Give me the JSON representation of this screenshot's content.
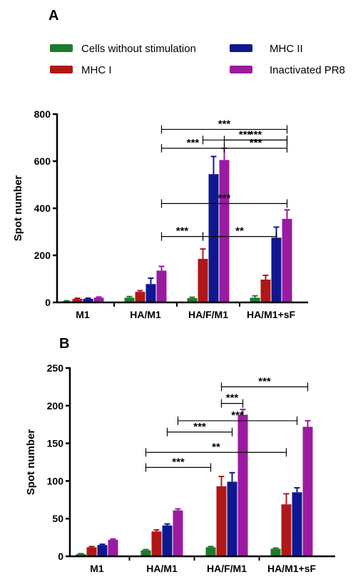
{
  "colors": {
    "Cells without stimulation": "#1e7a2e",
    "MHC I": "#b01818",
    "MHC II": "#101890",
    "Inactivated PR8": "#9b1ba0"
  },
  "legend": {
    "entries": [
      "Cells without stimulation",
      "MHC I",
      "MHC II",
      "Inactivated PR8"
    ]
  },
  "chart_data": [
    {
      "panel": "A",
      "type": "bar",
      "ylabel": "Spot number",
      "ylim": [
        0,
        800
      ],
      "yticks": [
        0,
        200,
        400,
        600,
        800
      ],
      "categories": [
        "M1",
        "HA/M1",
        "HA/F/M1",
        "HA/M1+sF"
      ],
      "series": [
        {
          "name": "Cells without stimulation",
          "values": [
            5,
            20,
            18,
            20
          ],
          "errors": [
            2,
            5,
            4,
            8
          ]
        },
        {
          "name": "MHC I",
          "values": [
            15,
            45,
            185,
            97
          ],
          "errors": [
            3,
            5,
            42,
            18
          ]
        },
        {
          "name": "MHC II",
          "values": [
            15,
            78,
            545,
            275
          ],
          "errors": [
            3,
            25,
            75,
            45
          ]
        },
        {
          "name": "Inactivated PR8",
          "values": [
            20,
            135,
            605,
            355
          ],
          "errors": [
            3,
            18,
            50,
            38
          ]
        }
      ],
      "significance": [
        {
          "label": "***",
          "from": [
            2,
            1
          ],
          "to": [
            3,
            3
          ],
          "level": 690
        },
        {
          "label": "***",
          "from": [
            2,
            3
          ],
          "to": [
            3,
            3
          ],
          "level": 690
        },
        {
          "label": "***",
          "from": [
            1,
            3
          ],
          "to": [
            3,
            3
          ],
          "level": 735
        },
        {
          "label": "***",
          "from": [
            1,
            3
          ],
          "to": [
            2,
            3
          ],
          "level": 655
        },
        {
          "label": "***",
          "from": [
            2,
            3
          ],
          "to": [
            3,
            3
          ],
          "level": 655
        },
        {
          "label": "***",
          "from": [
            1,
            3
          ],
          "to": [
            3,
            3
          ],
          "level": 420
        },
        {
          "label": "***",
          "from": [
            1,
            3
          ],
          "to": [
            2,
            1
          ],
          "level": 280
        },
        {
          "label": "**",
          "from": [
            2,
            1
          ],
          "to": [
            3,
            2
          ],
          "level": 280
        }
      ]
    },
    {
      "panel": "B",
      "type": "bar",
      "ylabel": "Spot number",
      "ylim": [
        0,
        250
      ],
      "yticks": [
        0,
        50,
        100,
        150,
        200,
        250
      ],
      "categories": [
        "M1",
        "HA/M1",
        "HA/F/M1",
        "HA/M1+sF"
      ],
      "series": [
        {
          "name": "Cells without stimulation",
          "values": [
            3,
            8,
            12,
            10
          ],
          "errors": [
            0.5,
            1,
            1,
            1
          ]
        },
        {
          "name": "MHC I",
          "values": [
            12,
            33,
            93,
            69
          ],
          "errors": [
            1,
            2,
            13,
            14
          ]
        },
        {
          "name": "MHC II",
          "values": [
            15,
            41,
            99,
            85
          ],
          "errors": [
            1,
            2,
            12,
            6
          ]
        },
        {
          "name": "Inactivated PR8",
          "values": [
            22,
            61,
            188,
            172
          ],
          "errors": [
            1,
            2,
            7,
            8
          ]
        }
      ],
      "significance": [
        {
          "label": "***",
          "from": [
            2,
            1
          ],
          "to": [
            3,
            3
          ],
          "level": 225
        },
        {
          "label": "***",
          "from": [
            2,
            1
          ],
          "to": [
            2,
            3
          ],
          "level": 203
        },
        {
          "label": "***",
          "from": [
            1,
            3
          ],
          "to": [
            3,
            2
          ],
          "level": 180
        },
        {
          "label": "***",
          "from": [
            1,
            2
          ],
          "to": [
            2,
            2
          ],
          "level": 165
        },
        {
          "label": "**",
          "from": [
            1,
            0
          ],
          "to": [
            3,
            1
          ],
          "level": 138
        },
        {
          "label": "***",
          "from": [
            1,
            0
          ],
          "to": [
            2,
            0
          ],
          "level": 118
        }
      ]
    }
  ]
}
